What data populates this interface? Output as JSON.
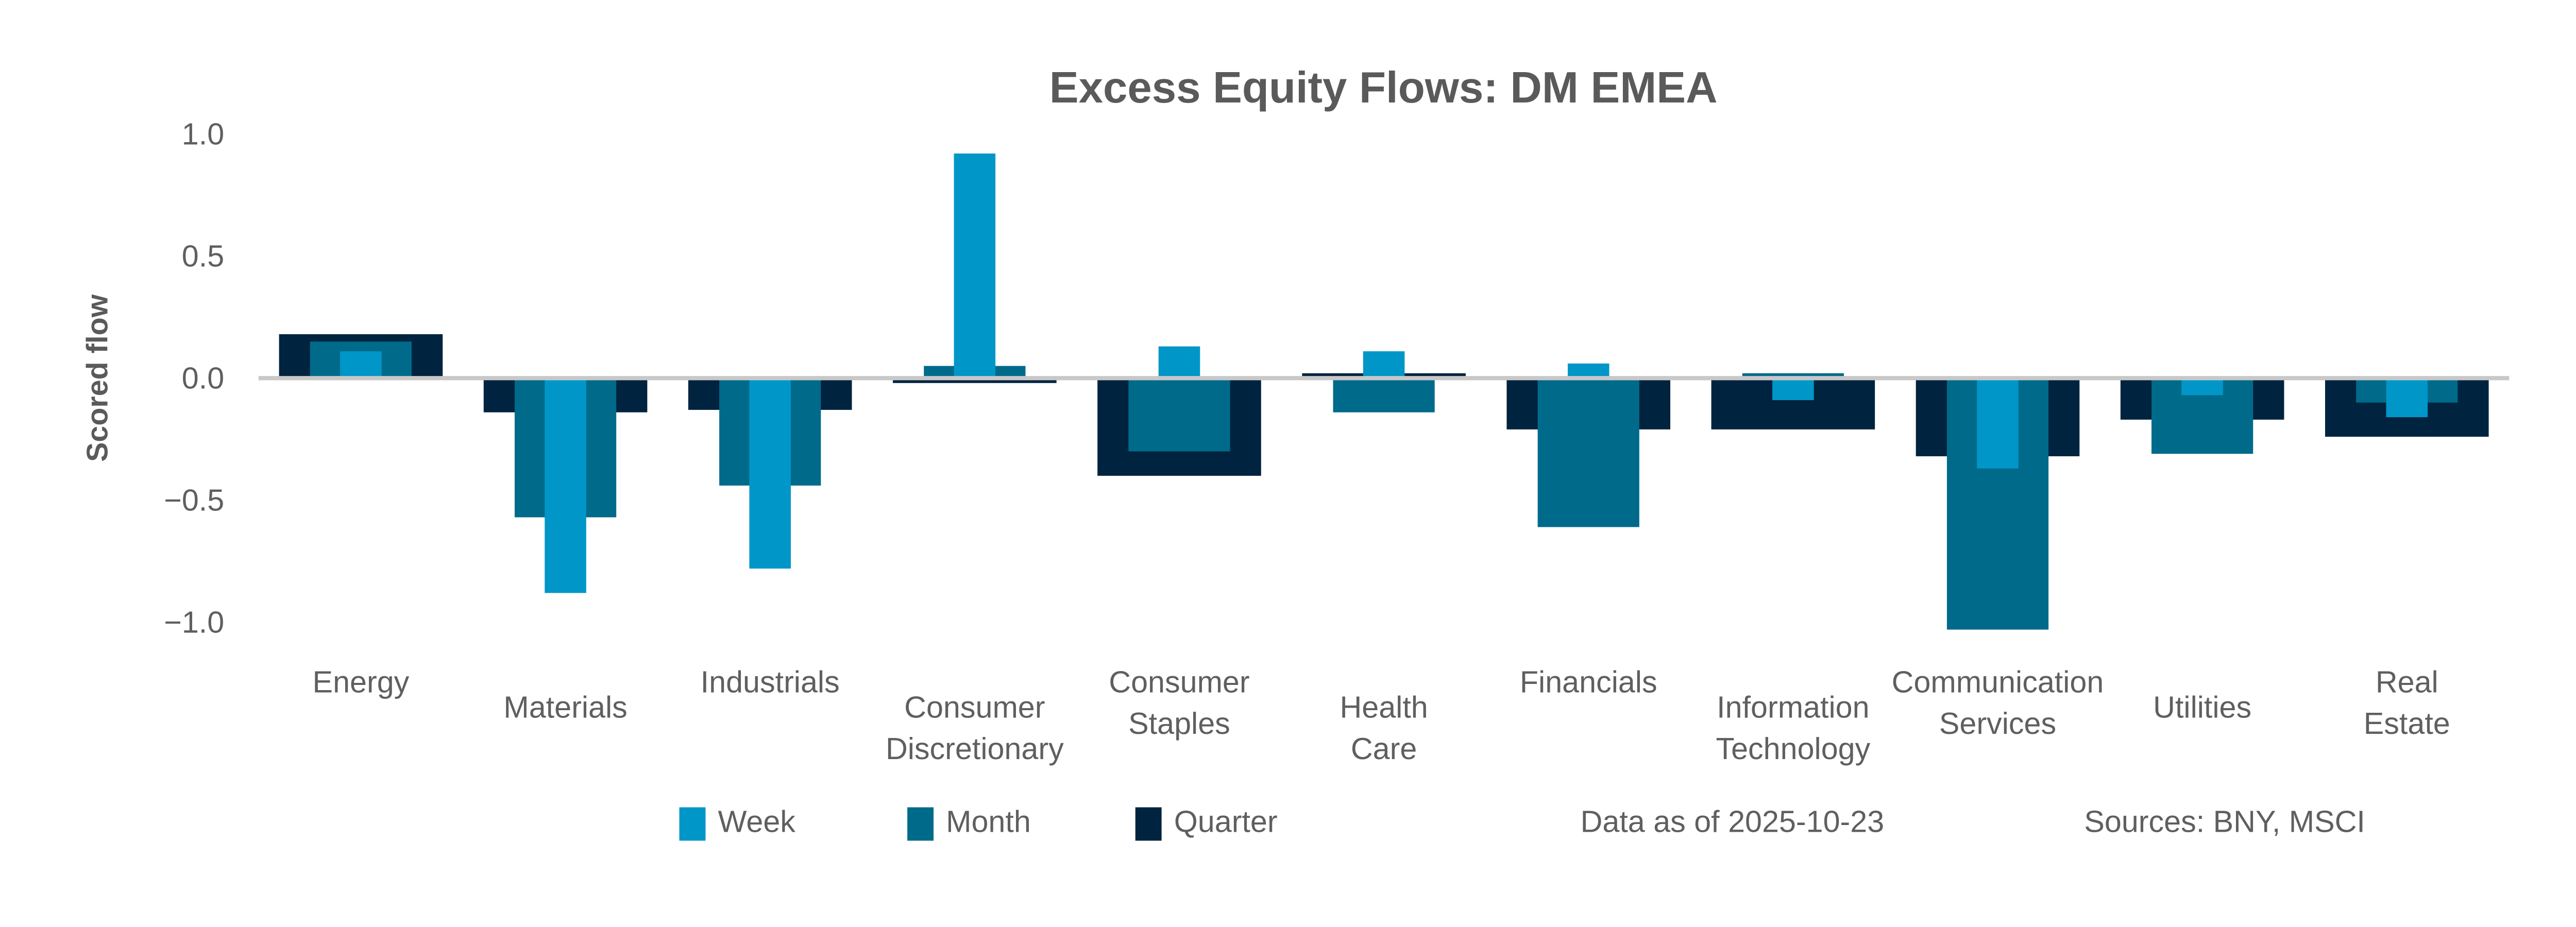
{
  "chart_data": {
    "type": "bar",
    "title": "Excess Equity Flows:  DM EMEA",
    "xlabel": "",
    "ylabel": "Scored flow",
    "ylim": [
      -1.0,
      1.0
    ],
    "yticks": [
      "1.0",
      "0.5",
      "0.0",
      "−0.5",
      "−1.0"
    ],
    "ytick_values": [
      1.0,
      0.5,
      0.0,
      -0.5,
      -1.0
    ],
    "grid": false,
    "legend_position": "bottom",
    "bar_style": "overlapping, centered (Quarter widest behind, Week narrowest in front)",
    "categories": [
      [
        "Energy"
      ],
      [
        "Materials"
      ],
      [
        "Industrials"
      ],
      [
        "Consumer",
        "Discretionary"
      ],
      [
        "Consumer",
        "Staples"
      ],
      [
        "Health",
        "Care"
      ],
      [
        "Financials"
      ],
      [
        "Information",
        "Technology"
      ],
      [
        "Communication",
        "Services"
      ],
      [
        "Utilities"
      ],
      [
        "Real",
        "Estate"
      ]
    ],
    "series": [
      {
        "name": "Quarter",
        "color": "#00233f",
        "values": [
          0.18,
          -0.14,
          -0.13,
          -0.02,
          -0.4,
          0.02,
          -0.21,
          -0.21,
          -0.32,
          -0.17,
          -0.24
        ]
      },
      {
        "name": "Month",
        "color": "#006a8b",
        "values": [
          0.15,
          -0.57,
          -0.44,
          0.05,
          -0.3,
          -0.14,
          -0.61,
          0.02,
          -1.03,
          -0.31,
          -0.1
        ]
      },
      {
        "name": "Week",
        "color": "#0096c8",
        "values": [
          0.11,
          -0.88,
          -0.78,
          0.92,
          0.13,
          0.11,
          0.06,
          -0.09,
          -0.37,
          -0.07,
          -0.16
        ]
      }
    ],
    "legend": [
      "Week",
      "Month",
      "Quarter"
    ],
    "zero_line_color": "#c8c8c8"
  },
  "footer": {
    "data_as_of": "Data as of 2025-10-23",
    "sources": "Sources:  BNY, MSCI"
  }
}
